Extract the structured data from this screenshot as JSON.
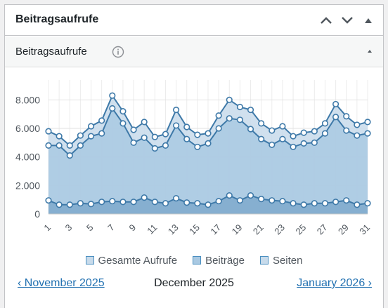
{
  "widget": {
    "title": "Beitragsaufrufe",
    "controls": [
      "chevron-up-icon",
      "chevron-down-icon",
      "triangle-up-icon"
    ]
  },
  "panel": {
    "title": "Beitragsaufrufe",
    "info_icon": "info-icon",
    "collapse_icon": "triangle-up-icon"
  },
  "colors": {
    "line": "#3e79a8",
    "fill_total": "#c8dbeb",
    "fill_posts": "#a9c9e2",
    "fill_pages": "#7fa9cc",
    "link": "#2271b1"
  },
  "chart_data": {
    "type": "area",
    "x": [
      1,
      2,
      3,
      4,
      5,
      6,
      7,
      8,
      9,
      10,
      11,
      12,
      13,
      14,
      15,
      16,
      17,
      18,
      19,
      20,
      21,
      22,
      23,
      24,
      25,
      26,
      27,
      28,
      29,
      30,
      31
    ],
    "xticks": [
      "1",
      "3",
      "5",
      "7",
      "9",
      "11",
      "13",
      "15",
      "17",
      "19",
      "21",
      "23",
      "25",
      "27",
      "29",
      "31"
    ],
    "yticks": [
      "0",
      "2.000",
      "4.000",
      "6.000",
      "8.000"
    ],
    "ylim": [
      0,
      9000
    ],
    "grid": true,
    "series": [
      {
        "name": "Gesamte Aufrufe",
        "values": [
          5800,
          5450,
          4800,
          5500,
          6150,
          6550,
          8300,
          7200,
          5900,
          6450,
          5400,
          5600,
          7300,
          6100,
          5550,
          5650,
          6900,
          8000,
          7500,
          7300,
          6350,
          5850,
          6150,
          5450,
          5700,
          5800,
          6350,
          7700,
          6850,
          6250,
          6450
        ]
      },
      {
        "name": "Beiträge",
        "values": [
          4800,
          4800,
          4100,
          4800,
          5450,
          5650,
          7400,
          6350,
          5000,
          5350,
          4600,
          4800,
          6200,
          5250,
          4700,
          4950,
          6000,
          6700,
          6600,
          5950,
          5250,
          4850,
          5250,
          4700,
          4950,
          5000,
          5650,
          6800,
          5850,
          5500,
          5650
        ]
      },
      {
        "name": "Seiten",
        "values": [
          950,
          650,
          650,
          750,
          700,
          850,
          900,
          850,
          850,
          1150,
          850,
          750,
          1100,
          800,
          750,
          650,
          900,
          1300,
          950,
          1300,
          1050,
          950,
          900,
          750,
          650,
          750,
          750,
          850,
          950,
          650,
          750
        ]
      }
    ]
  },
  "legend": [
    "Gesamte Aufrufe",
    "Beiträge",
    "Seiten"
  ],
  "nav": {
    "prev": "‹ November 2025",
    "current": "December 2025",
    "next": "January 2026 ›"
  }
}
